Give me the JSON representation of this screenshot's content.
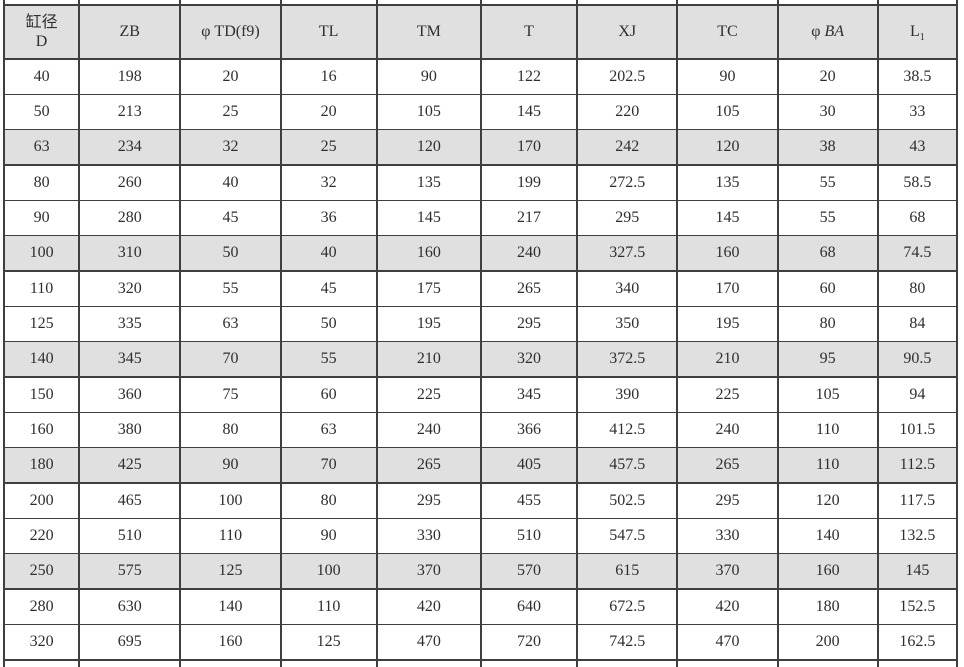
{
  "colors": {
    "border": "#3f3f3f",
    "text": "#2e2e2e",
    "header_bg": "#e0e0e0",
    "shaded_row_bg": "#e0e0e0",
    "page_bg": "#ffffff"
  },
  "table": {
    "description_visible_only": "cylinder dimension specification table",
    "columns": [
      {
        "id": "bore",
        "label": "缸径",
        "label_line2": "D"
      },
      {
        "id": "zb",
        "label": "ZB"
      },
      {
        "id": "td",
        "label": "φ TD(f9)"
      },
      {
        "id": "tl",
        "label": "TL"
      },
      {
        "id": "tm",
        "label": "TM"
      },
      {
        "id": "t",
        "label": "T"
      },
      {
        "id": "xj",
        "label": "XJ"
      },
      {
        "id": "tc",
        "label": "TC"
      },
      {
        "id": "ba",
        "prefix": "φ ",
        "label": "BA",
        "italic": true
      },
      {
        "id": "l1",
        "label": "L",
        "subscript": "1"
      }
    ],
    "rows": [
      {
        "cells": [
          "40",
          "198",
          "20",
          "16",
          "90",
          "122",
          "202.5",
          "90",
          "20",
          "38.5"
        ]
      },
      {
        "cells": [
          "50",
          "213",
          "25",
          "20",
          "105",
          "145",
          "220",
          "105",
          "30",
          "33"
        ]
      },
      {
        "cells": [
          "63",
          "234",
          "32",
          "25",
          "120",
          "170",
          "242",
          "120",
          "38",
          "43"
        ]
      },
      {
        "cells": [
          "80",
          "260",
          "40",
          "32",
          "135",
          "199",
          "272.5",
          "135",
          "55",
          "58.5"
        ]
      },
      {
        "cells": [
          "90",
          "280",
          "45",
          "36",
          "145",
          "217",
          "295",
          "145",
          "55",
          "68"
        ]
      },
      {
        "cells": [
          "100",
          "310",
          "50",
          "40",
          "160",
          "240",
          "327.5",
          "160",
          "68",
          "74.5"
        ]
      },
      {
        "cells": [
          "110",
          "320",
          "55",
          "45",
          "175",
          "265",
          "340",
          "170",
          "60",
          "80"
        ]
      },
      {
        "cells": [
          "125",
          "335",
          "63",
          "50",
          "195",
          "295",
          "350",
          "195",
          "80",
          "84"
        ]
      },
      {
        "cells": [
          "140",
          "345",
          "70",
          "55",
          "210",
          "320",
          "372.5",
          "210",
          "95",
          "90.5"
        ]
      },
      {
        "cells": [
          "150",
          "360",
          "75",
          "60",
          "225",
          "345",
          "390",
          "225",
          "105",
          "94"
        ]
      },
      {
        "cells": [
          "160",
          "380",
          "80",
          "63",
          "240",
          "366",
          "412.5",
          "240",
          "110",
          "101.5"
        ]
      },
      {
        "cells": [
          "180",
          "425",
          "90",
          "70",
          "265",
          "405",
          "457.5",
          "265",
          "110",
          "112.5"
        ]
      },
      {
        "cells": [
          "200",
          "465",
          "100",
          "80",
          "295",
          "455",
          "502.5",
          "295",
          "120",
          "117.5"
        ]
      },
      {
        "cells": [
          "220",
          "510",
          "110",
          "90",
          "330",
          "510",
          "547.5",
          "330",
          "140",
          "132.5"
        ]
      },
      {
        "cells": [
          "250",
          "575",
          "125",
          "100",
          "370",
          "570",
          "615",
          "370",
          "160",
          "145"
        ]
      },
      {
        "cells": [
          "280",
          "630",
          "140",
          "110",
          "420",
          "640",
          "672.5",
          "420",
          "180",
          "152.5"
        ]
      },
      {
        "cells": [
          "320",
          "695",
          "160",
          "125",
          "470",
          "720",
          "742.5",
          "470",
          "200",
          "162.5"
        ]
      }
    ],
    "shaded_row_indexes": [
      2,
      5,
      8,
      11,
      14
    ]
  }
}
